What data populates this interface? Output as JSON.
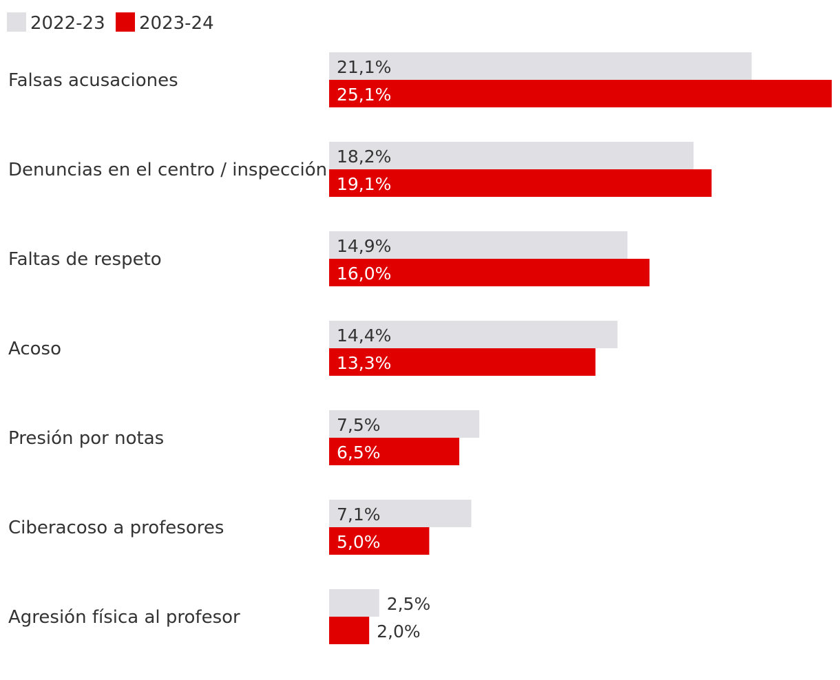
{
  "chart_data": {
    "type": "bar",
    "orientation": "horizontal",
    "categories": [
      "Falsas acusaciones",
      "Denuncias en el centro / inspección",
      "Faltas de respeto",
      "Acoso",
      "Presión por notas",
      "Ciberacoso a profesores",
      "Agresión física al profesor"
    ],
    "series": [
      {
        "name": "2022-23",
        "color": "#e0dfe4",
        "values": [
          21.1,
          18.2,
          14.9,
          14.4,
          7.5,
          7.1,
          2.5
        ],
        "labels": [
          "21,1%",
          "18,2%",
          "14,9%",
          "14,4%",
          "7,5%",
          "7,1%",
          "2,5%"
        ]
      },
      {
        "name": "2023-24",
        "color": "#e00000",
        "values": [
          25.1,
          19.1,
          16.0,
          13.3,
          6.5,
          5.0,
          2.0
        ],
        "labels": [
          "25,1%",
          "19,1%",
          "16,0%",
          "13,3%",
          "6,5%",
          "5,0%",
          "2,0%"
        ]
      }
    ],
    "xlim": [
      0,
      25.1
    ],
    "legend": "top-left",
    "grid": false
  }
}
